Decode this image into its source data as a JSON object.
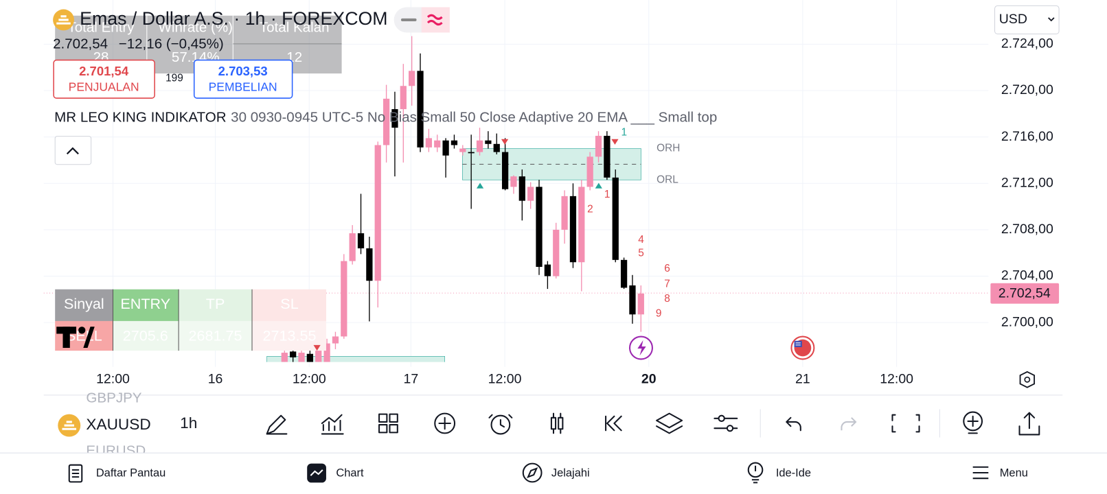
{
  "header": {
    "title": "Emas / Dollar A.S. · 1h · FOREXCOM",
    "change": "−12,16 (−0,45%)",
    "sell": {
      "price": "2.701,54",
      "label": "PENJUALAN"
    },
    "spread": "199",
    "buy": {
      "price": "2.703,53",
      "label": "PEMBELIAN"
    },
    "currency": "USD"
  },
  "stats_table": {
    "headers": [
      "Total Entry",
      "Winrate (%)",
      "Total Kalah"
    ],
    "row": [
      "28",
      "57.14%",
      "12"
    ]
  },
  "indicator": {
    "name": "MR LEO KING INDIKATOR",
    "params": "30 0930-0945 UTC-5 No Bias Small 50 Close Adaptive 20 EMA ___ Small top"
  },
  "signal_table": {
    "headers": [
      "Sinyal",
      "ENTRY",
      "TP",
      "SL"
    ],
    "row": [
      "SELL",
      "2705.6",
      "2681.75",
      "2713.55"
    ]
  },
  "chart_data": {
    "type": "candlestick",
    "up_color": "#f48fb1",
    "down_color": "#000000",
    "open": [
      2696.6,
      2697.5,
      2696.6,
      2697.3,
      2696.6,
      2696.6,
      2698.2,
      2698.8,
      2705.3,
      2707.7,
      2706.4,
      2703.6,
      2715.3,
      2718.4,
      2718.4,
      2720.4,
      2721.7,
      2715.1,
      2715.1,
      2715.7,
      2715.7,
      2714.7,
      2714.7,
      2714.7,
      2715.7,
      2715.4,
      2714.7,
      2711.7,
      2712.6,
      2710.5,
      2711.7,
      2705.0,
      2704.0,
      2708.0,
      2710.9,
      2705.2,
      2711.7,
      2714.3,
      2716.1,
      2712.5,
      2705.4,
      2703.2,
      2700.7
    ],
    "high": [
      2698.0,
      2698.1,
      2697.7,
      2697.7,
      2698.2,
      2698.6,
      2699.2,
      2705.9,
      2708.4,
      2711.1,
      2707.4,
      2715.6,
      2720.5,
      2719.9,
      2722.3,
      2724.7,
      2723.2,
      2716.7,
      2716.2,
      2715.9,
      2716.2,
      2715.3,
      2716.2,
      2716.8,
      2716.5,
      2716.3,
      2715.9,
      2712.7,
      2713.2,
      2712.1,
      2712.3,
      2705.3,
      2708.6,
      2711.4,
      2712.0,
      2712.3,
      2714.7,
      2716.5,
      2716.5,
      2713.2,
      2705.6,
      2704.1,
      2703.2
    ],
    "low": [
      2696.6,
      2696.6,
      2696.6,
      2696.6,
      2696.6,
      2696.6,
      2697.7,
      2698.6,
      2705.0,
      2705.9,
      2700.1,
      2701.3,
      2713.8,
      2712.6,
      2713.8,
      2718.7,
      2714.7,
      2714.7,
      2714.7,
      2712.5,
      2715.0,
      2714.4,
      2709.8,
      2714.4,
      2715.0,
      2714.5,
      2711.4,
      2711.1,
      2708.8,
      2709.8,
      2704.1,
      2702.9,
      2703.8,
      2706.8,
      2704.7,
      2702.7,
      2711.4,
      2713.8,
      2712.3,
      2705.2,
      2702.9,
      2699.9,
      2699.2
    ],
    "close": [
      2697.4,
      2697.0,
      2697.4,
      2696.6,
      2698.0,
      2698.2,
      2698.8,
      2705.3,
      2707.7,
      2706.4,
      2703.6,
      2715.3,
      2719.3,
      2716.8,
      2720.4,
      2721.7,
      2715.1,
      2715.9,
      2715.7,
      2714.4,
      2715.3,
      2715.0,
      2714.6,
      2715.7,
      2715.4,
      2714.7,
      2711.5,
      2712.6,
      2710.5,
      2711.7,
      2704.8,
      2704.0,
      2708.0,
      2710.9,
      2705.2,
      2711.7,
      2714.3,
      2716.1,
      2712.5,
      2705.4,
      2703.0,
      2700.7,
      2702.5
    ],
    "ylim": [
      2696.6,
      2727.8
    ],
    "yticks": [
      {
        "value": 2724,
        "label": "2.724,00"
      },
      {
        "value": 2720,
        "label": "2.720,00"
      },
      {
        "value": 2716,
        "label": "2.716,00"
      },
      {
        "value": 2712,
        "label": "2.712,00"
      },
      {
        "value": 2708,
        "label": "2.708,00"
      },
      {
        "value": 2704,
        "label": "2.704,00"
      },
      {
        "value": 2700,
        "label": "2.700,00"
      }
    ],
    "xticks": [
      "12:00",
      "16",
      "12:00",
      "17",
      "12:00",
      "20",
      "21",
      "12:00"
    ],
    "last_price": {
      "value": 2702.54,
      "label": "2.702,54"
    },
    "levels": [
      {
        "label": "ORH",
        "value": 2715.0
      },
      {
        "label": "ORL",
        "value": 2712.3
      }
    ],
    "annotations": [
      "1",
      "1",
      "2",
      "4",
      "5",
      "6",
      "7",
      "8",
      "9"
    ],
    "grid": true
  },
  "toolbar": {
    "symbols": [
      "GBPJPY",
      "XAUUSD",
      "EURUSD"
    ],
    "interval": "1h"
  },
  "nav": [
    "Daftar Pantau",
    "Chart",
    "Jelajahi",
    "Ide-Ide",
    "Menu"
  ]
}
